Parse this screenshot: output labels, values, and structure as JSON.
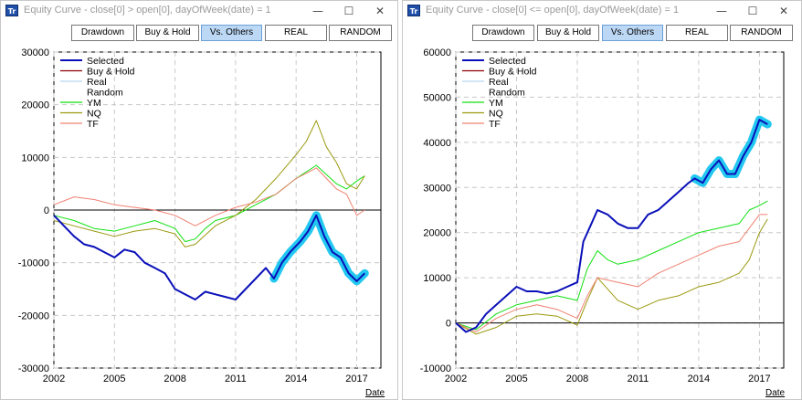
{
  "windows": [
    {
      "title": "Equity Curve - close[0] > open[0], dayOfWeek(date) = 1",
      "app_icon": "Tr",
      "controls": {
        "minimize": "—",
        "maximize": "☐",
        "close": "✕"
      },
      "buttons": [
        {
          "label": "Drawdown",
          "active": false
        },
        {
          "label": "Buy & Hold",
          "active": false
        },
        {
          "label": "Vs. Others",
          "active": true
        },
        {
          "label": "REAL",
          "active": false
        },
        {
          "label": "RANDOM",
          "active": false
        }
      ],
      "date_label": "Date"
    },
    {
      "title": "Equity Curve - close[0] <= open[0], dayOfWeek(date) = 1",
      "app_icon": "Tr",
      "controls": {
        "minimize": "—",
        "maximize": "☐",
        "close": "✕"
      },
      "buttons": [
        {
          "label": "Drawdown",
          "active": false
        },
        {
          "label": "Buy & Hold",
          "active": false
        },
        {
          "label": "Vs. Others",
          "active": true
        },
        {
          "label": "REAL",
          "active": false
        },
        {
          "label": "RANDOM",
          "active": false
        }
      ],
      "date_label": "Date"
    }
  ],
  "colors": {
    "selected": "#0a10b8",
    "selected_glow": "#22c8f0",
    "buy_hold": "#8b0000",
    "real": "#b8d8f0",
    "random": "#ffffff",
    "ym": "#10e010",
    "nq": "#9a9a10",
    "tf": "#f08070"
  },
  "chart_data": [
    {
      "type": "line",
      "title": "",
      "xlabel": "Date",
      "ylabel": "",
      "xlim": [
        2002,
        2018.2
      ],
      "ylim": [
        -30000,
        30000
      ],
      "yticks": [
        -30000,
        -20000,
        -10000,
        0,
        10000,
        20000,
        30000
      ],
      "xticks": [
        2002,
        2005,
        2008,
        2011,
        2014,
        2017
      ],
      "grid": true,
      "legend": "top-left",
      "legend_entries": [
        "Selected",
        "Buy & Hold",
        "Real",
        "Random",
        "YM",
        "NQ",
        "TF"
      ],
      "highlight_from": 2012.9,
      "series": [
        {
          "name": "Selected",
          "x": [
            2002,
            2002.5,
            2003,
            2003.5,
            2004,
            2004.5,
            2005,
            2005.5,
            2006,
            2006.5,
            2007,
            2007.5,
            2008,
            2008.5,
            2009,
            2009.5,
            2010,
            2010.5,
            2011,
            2011.5,
            2012,
            2012.5,
            2012.9,
            2013.3,
            2013.7,
            2014.2,
            2014.6,
            2015,
            2015.4,
            2015.8,
            2016.2,
            2016.6,
            2017,
            2017.4
          ],
          "values": [
            -1000,
            -3000,
            -5000,
            -6500,
            -7000,
            -8000,
            -9000,
            -7500,
            -8000,
            -10000,
            -11000,
            -12000,
            -15000,
            -16000,
            -17000,
            -15500,
            -16000,
            -16500,
            -17000,
            -15000,
            -13000,
            -11000,
            -13000,
            -10000,
            -8000,
            -6000,
            -4000,
            -1000,
            -5000,
            -8000,
            -9000,
            -12000,
            -13500,
            -12000
          ]
        },
        {
          "name": "YM",
          "x": [
            2002,
            2003,
            2004,
            2005,
            2006,
            2007,
            2008,
            2008.5,
            2009,
            2009.5,
            2010,
            2011,
            2012,
            2013,
            2014,
            2015,
            2016,
            2016.5,
            2017,
            2017.4
          ],
          "values": [
            -1000,
            -2000,
            -3500,
            -4000,
            -3000,
            -2000,
            -3500,
            -6000,
            -5500,
            -3500,
            -2000,
            -1000,
            1000,
            3000,
            6000,
            8500,
            5000,
            4000,
            5500,
            6500
          ]
        },
        {
          "name": "NQ",
          "x": [
            2002,
            2003,
            2004,
            2005,
            2006,
            2007,
            2008,
            2008.5,
            2009,
            2010,
            2011,
            2012,
            2013,
            2014,
            2014.5,
            2015,
            2015.5,
            2016,
            2016.5,
            2017,
            2017.4
          ],
          "values": [
            -2000,
            -3000,
            -4000,
            -5000,
            -4000,
            -3500,
            -4500,
            -7000,
            -6500,
            -3000,
            -1000,
            2000,
            6000,
            10500,
            13000,
            17000,
            12000,
            9000,
            5000,
            4000,
            6500
          ]
        },
        {
          "name": "TF",
          "x": [
            2002,
            2003,
            2004,
            2005,
            2006,
            2007,
            2008,
            2009,
            2010,
            2011,
            2012,
            2013,
            2014,
            2015,
            2015.5,
            2016,
            2016.5,
            2017,
            2017.4
          ],
          "values": [
            1000,
            2500,
            2000,
            1000,
            500,
            0,
            -1000,
            -3000,
            -1000,
            500,
            1500,
            3000,
            6000,
            8000,
            6000,
            4000,
            3000,
            -1000,
            0
          ]
        }
      ]
    },
    {
      "type": "line",
      "title": "",
      "xlabel": "Date",
      "ylabel": "",
      "xlim": [
        2002,
        2018.2
      ],
      "ylim": [
        -10000,
        60000
      ],
      "yticks": [
        -10000,
        0,
        10000,
        20000,
        30000,
        40000,
        50000,
        60000
      ],
      "xticks": [
        2002,
        2005,
        2008,
        2011,
        2014,
        2017
      ],
      "grid": true,
      "legend": "top-left",
      "legend_entries": [
        "Selected",
        "Buy & Hold",
        "Real",
        "Random",
        "YM",
        "NQ",
        "TF"
      ],
      "highlight_from": 2013.8,
      "series": [
        {
          "name": "Selected",
          "x": [
            2002,
            2002.5,
            2003,
            2003.5,
            2004,
            2004.5,
            2005,
            2005.5,
            2006,
            2006.5,
            2007,
            2007.5,
            2008,
            2008.3,
            2008.7,
            2009,
            2009.5,
            2010,
            2010.5,
            2011,
            2011.5,
            2012,
            2012.5,
            2013,
            2013.5,
            2013.8,
            2014.2,
            2014.6,
            2015,
            2015.4,
            2015.8,
            2016.2,
            2016.6,
            2017,
            2017.4
          ],
          "values": [
            0,
            -2000,
            -1000,
            2000,
            4000,
            6000,
            8000,
            7000,
            7000,
            6500,
            7000,
            8000,
            9000,
            18000,
            22000,
            25000,
            24000,
            22000,
            21000,
            21000,
            24000,
            25000,
            27000,
            29000,
            31000,
            32000,
            31000,
            34000,
            36000,
            33000,
            33000,
            37000,
            40000,
            45000,
            44000
          ]
        },
        {
          "name": "YM",
          "x": [
            2002,
            2003,
            2004,
            2005,
            2006,
            2007,
            2008,
            2008.5,
            2009,
            2009.5,
            2010,
            2011,
            2012,
            2013,
            2014,
            2015,
            2016,
            2016.5,
            2017,
            2017.4
          ],
          "values": [
            0,
            -1500,
            2000,
            4000,
            5000,
            6000,
            5000,
            12000,
            16000,
            14000,
            13000,
            14000,
            16000,
            18000,
            20000,
            21000,
            22000,
            25000,
            26000,
            27000
          ]
        },
        {
          "name": "NQ",
          "x": [
            2002,
            2003,
            2004,
            2005,
            2006,
            2007,
            2008,
            2008.5,
            2009,
            2010,
            2011,
            2012,
            2013,
            2014,
            2015,
            2016,
            2016.5,
            2017,
            2017.4
          ],
          "values": [
            0,
            -2500,
            -1000,
            1500,
            2000,
            1500,
            -500,
            5000,
            10000,
            5000,
            3000,
            5000,
            6000,
            8000,
            9000,
            11000,
            14000,
            20000,
            23000
          ]
        },
        {
          "name": "TF",
          "x": [
            2002,
            2003,
            2004,
            2005,
            2006,
            2007,
            2008,
            2008.5,
            2009,
            2010,
            2011,
            2012,
            2013,
            2014,
            2015,
            2016,
            2016.5,
            2017,
            2017.4
          ],
          "values": [
            0,
            -2000,
            1000,
            3000,
            4000,
            3000,
            1000,
            6000,
            10000,
            9000,
            8000,
            11000,
            13000,
            15000,
            17000,
            18000,
            21000,
            24000,
            24000
          ]
        }
      ]
    }
  ]
}
